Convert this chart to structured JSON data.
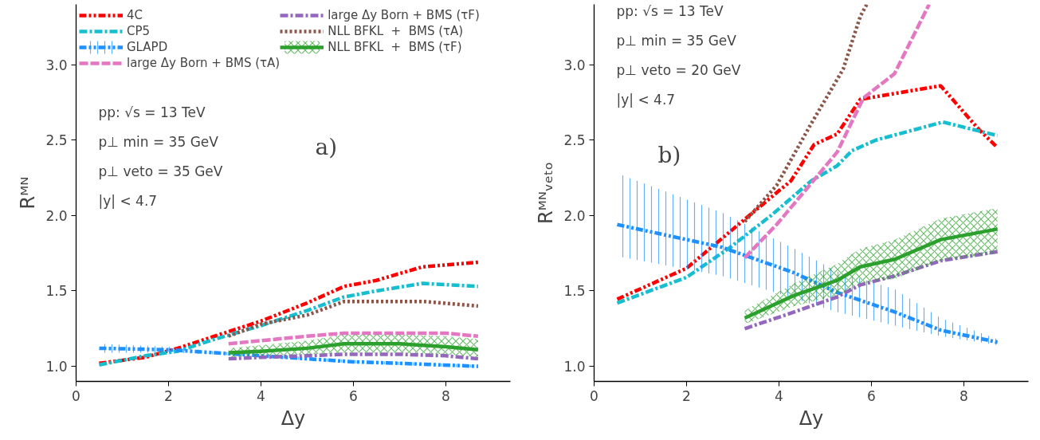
{
  "chart_data": [
    {
      "type": "line",
      "xlabel": "Δy",
      "ylabel": "Rᴹᴺ",
      "xlim": [
        0,
        9.4
      ],
      "ylim": [
        0.9,
        3.4
      ],
      "xticks": [
        0,
        2,
        4,
        6,
        8
      ],
      "yticks": [
        {
          "value": 1,
          "label": "1.0"
        },
        {
          "value": 1.5,
          "label": "1.5"
        },
        {
          "value": 2,
          "label": "2.0"
        },
        {
          "value": 2.5,
          "label": "2.5"
        },
        {
          "value": 3,
          "label": "3.0"
        }
      ],
      "grid": false,
      "legend": "top left",
      "annotations": [
        "pp:  √s = 13 TeV",
        "p⊥ min = 35 GeV",
        "p⊥ veto = 35 GeV",
        "|y| < 4.7",
        "a)"
      ],
      "series": [
        {
          "name": "4C",
          "color": "#ff0000",
          "line_style": "dashdotdot",
          "x": [
            0.5,
            1.5,
            2.2,
            3,
            4,
            5,
            5.8,
            6.5,
            7.5,
            8.7
          ],
          "values": [
            1.02,
            1.06,
            1.12,
            1.2,
            1.3,
            1.42,
            1.53,
            1.57,
            1.66,
            1.69
          ]
        },
        {
          "name": "CP5",
          "color": "#17becf",
          "line_style": "dashdot",
          "x": [
            0.5,
            1.5,
            2.2,
            3,
            4,
            5,
            5.8,
            6.5,
            7.5,
            8.7
          ],
          "values": [
            1.01,
            1.07,
            1.1,
            1.18,
            1.27,
            1.37,
            1.46,
            1.5,
            1.55,
            1.53
          ]
        },
        {
          "name": "GLAPD",
          "color": "#1e90ff",
          "line_style": "dashdotdot",
          "x": [
            0.5,
            2,
            3,
            4,
            5,
            6,
            7,
            8.7
          ],
          "values": [
            1.12,
            1.11,
            1.09,
            1.07,
            1.05,
            1.03,
            1.02,
            1.0
          ],
          "lower": [
            1.09,
            1.09,
            1.08,
            1.06,
            1.04,
            1.02,
            1.01,
            0.99
          ],
          "upper": [
            1.15,
            1.13,
            1.1,
            1.08,
            1.06,
            1.04,
            1.03,
            1.01
          ]
        },
        {
          "name": "large Δy Born + BMS (τA)",
          "color": "#e377c2",
          "line_style": "dashed",
          "x": [
            3.3,
            4,
            5,
            5.8,
            7,
            8,
            8.7
          ],
          "values": [
            1.15,
            1.17,
            1.2,
            1.22,
            1.22,
            1.22,
            1.2
          ]
        },
        {
          "name": "large Δy Born + BMS (τF)",
          "color": "#9467bd",
          "line_style": "dashdot",
          "x": [
            3.3,
            4,
            5,
            5.8,
            7,
            8,
            8.7
          ],
          "values": [
            1.05,
            1.06,
            1.07,
            1.08,
            1.08,
            1.07,
            1.05
          ]
        },
        {
          "name": "NLL BFKL  +  BMS (τA)",
          "color": "#8c564b",
          "line_style": "dotted",
          "x": [
            3.3,
            4,
            5,
            5.8,
            7,
            7.5,
            8.7
          ],
          "values": [
            1.2,
            1.28,
            1.34,
            1.43,
            1.43,
            1.43,
            1.4
          ]
        },
        {
          "name": "NLL BFKL  +  BMS (τF)",
          "color": "#2ca02c",
          "line_style": "solid",
          "x": [
            3.3,
            4,
            5,
            5.8,
            7,
            8,
            8.7
          ],
          "values": [
            1.09,
            1.1,
            1.12,
            1.15,
            1.15,
            1.13,
            1.11
          ],
          "lower": [
            1.06,
            1.07,
            1.08,
            1.09,
            1.09,
            1.08,
            1.06
          ],
          "upper": [
            1.12,
            1.14,
            1.17,
            1.21,
            1.21,
            1.2,
            1.18
          ]
        }
      ]
    },
    {
      "type": "line",
      "xlabel": "Δy",
      "ylabel": "Rᴹᴺᵥₑₜₒ",
      "xlim": [
        0,
        9.4
      ],
      "ylim": [
        0.9,
        3.4
      ],
      "xticks": [
        0,
        2,
        4,
        6,
        8
      ],
      "yticks": [
        {
          "value": 1,
          "label": "1.0"
        },
        {
          "value": 1.5,
          "label": "1.5"
        },
        {
          "value": 2,
          "label": "2.0"
        },
        {
          "value": 2.5,
          "label": "2.5"
        },
        {
          "value": 3,
          "label": "3.0"
        }
      ],
      "grid": false,
      "legend": false,
      "annotations": [
        "pp:  √s = 13 TeV",
        "p⊥ min = 35 GeV",
        "p⊥ veto = 20 GeV",
        "|y| < 4.7",
        "b)"
      ],
      "series": [
        {
          "color": "#ff0000",
          "line_style": "dashdotdot",
          "x": [
            0.5,
            2,
            3.2,
            4.26,
            4.76,
            5.26,
            5.76,
            7.5,
            8.33,
            8.73
          ],
          "values": [
            1.445,
            1.65,
            1.96,
            2.23,
            2.47,
            2.54,
            2.77,
            2.86,
            2.57,
            2.45
          ]
        },
        {
          "color": "#17becf",
          "line_style": "dashdot",
          "x": [
            0.5,
            2,
            2.95,
            3.83,
            4.7,
            5.26,
            5.58,
            6.1,
            7.55,
            8.73
          ],
          "values": [
            1.42,
            1.59,
            1.79,
            2.0,
            2.23,
            2.33,
            2.43,
            2.5,
            2.62,
            2.53
          ]
        },
        {
          "color": "#1e90ff",
          "line_style": "dashdotdot",
          "x": [
            0.5,
            2.76,
            4.33,
            5.26,
            6.51,
            7.5,
            8.73
          ],
          "values": [
            1.94,
            1.79,
            1.62,
            1.49,
            1.36,
            1.24,
            1.16
          ],
          "lower": [
            1.73,
            1.6,
            1.45,
            1.36,
            1.27,
            1.2,
            1.14
          ],
          "upper": [
            2.28,
            2.02,
            1.78,
            1.63,
            1.51,
            1.32,
            1.18
          ]
        },
        {
          "color": "#e377c2",
          "line_style": "dashed",
          "x": [
            3.26,
            3.95,
            4.58,
            5.26,
            5.83,
            6.5,
            7.25
          ],
          "values": [
            1.72,
            1.94,
            2.17,
            2.42,
            2.78,
            2.94,
            3.4
          ]
        },
        {
          "color": "#9467bd",
          "line_style": "dashdot",
          "x": [
            3.26,
            4.33,
            5.26,
            5.76,
            6.51,
            7.5,
            8.73
          ],
          "values": [
            1.25,
            1.36,
            1.46,
            1.54,
            1.6,
            1.7,
            1.76
          ]
        },
        {
          "color": "#8c564b",
          "line_style": "dotted",
          "x": [
            3.26,
            3.95,
            4.7,
            5.39,
            5.76,
            5.9
          ],
          "values": [
            1.96,
            2.2,
            2.61,
            2.97,
            3.32,
            3.4
          ]
        },
        {
          "color": "#2ca02c",
          "line_style": "solid",
          "x": [
            3.26,
            4.33,
            5.26,
            5.76,
            6.51,
            7.5,
            8.73
          ],
          "values": [
            1.32,
            1.47,
            1.57,
            1.66,
            1.71,
            1.84,
            1.91
          ],
          "lower": [
            1.28,
            1.4,
            1.47,
            1.55,
            1.58,
            1.7,
            1.75
          ],
          "upper": [
            1.37,
            1.55,
            1.68,
            1.78,
            1.84,
            1.98,
            2.05
          ]
        }
      ]
    }
  ]
}
